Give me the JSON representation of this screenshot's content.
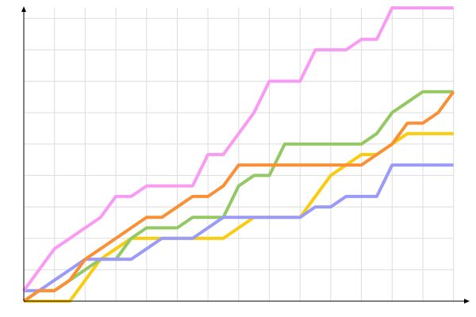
{
  "chart_data": {
    "type": "line",
    "x": [
      0,
      1,
      2,
      3,
      4,
      5,
      6,
      7,
      8,
      9,
      10,
      11,
      12,
      13,
      14,
      15,
      16,
      17,
      18,
      19,
      20,
      21,
      22,
      23,
      24,
      25,
      26,
      27,
      28
    ],
    "series": [
      {
        "color": "#f9cc10",
        "values": [
          0,
          0,
          0,
          0,
          2,
          4,
          5,
          6,
          6,
          6,
          6,
          6,
          6,
          6,
          7,
          8,
          8,
          8,
          8,
          10,
          12,
          13,
          14,
          14,
          15,
          16,
          16,
          16,
          16
        ]
      },
      {
        "color": "#93c862",
        "values": [
          0,
          1,
          1,
          2,
          3,
          4,
          4,
          6,
          7,
          7,
          7,
          8,
          8,
          8,
          11,
          12,
          12,
          15,
          15,
          15,
          15,
          15,
          15,
          16,
          18,
          19,
          20,
          20,
          20
        ]
      },
      {
        "color": "#9a9bf8",
        "values": [
          1,
          1,
          2,
          3,
          4,
          4,
          4,
          4,
          5,
          6,
          6,
          6,
          7,
          8,
          8,
          8,
          8,
          8,
          8,
          9,
          9,
          10,
          10,
          10,
          13,
          13,
          13,
          13,
          13
        ]
      },
      {
        "color": "#fa9035",
        "values": [
          0,
          1,
          1,
          2,
          4,
          5,
          6,
          7,
          8,
          8,
          9,
          10,
          10,
          11,
          13,
          13,
          13,
          13,
          13,
          13,
          13,
          13,
          13,
          14,
          15,
          17,
          17,
          18,
          20
        ]
      },
      {
        "color": "#f99af5",
        "values": [
          1,
          3,
          5,
          6,
          7,
          8,
          10,
          10,
          11,
          11,
          11,
          11,
          14,
          14,
          16,
          18,
          21,
          21,
          21,
          24,
          24,
          24,
          25,
          25,
          28,
          28,
          28,
          28,
          28
        ]
      }
    ],
    "xlim": [
      0,
      29
    ],
    "ylim": [
      0,
      28
    ],
    "xticks": [
      0,
      2,
      4,
      6,
      8,
      10,
      12,
      14,
      16,
      18,
      20,
      22,
      24,
      26,
      28
    ],
    "yticks": [
      0,
      3,
      6,
      9,
      12,
      15,
      18,
      21,
      24,
      27
    ],
    "grid": true
  }
}
